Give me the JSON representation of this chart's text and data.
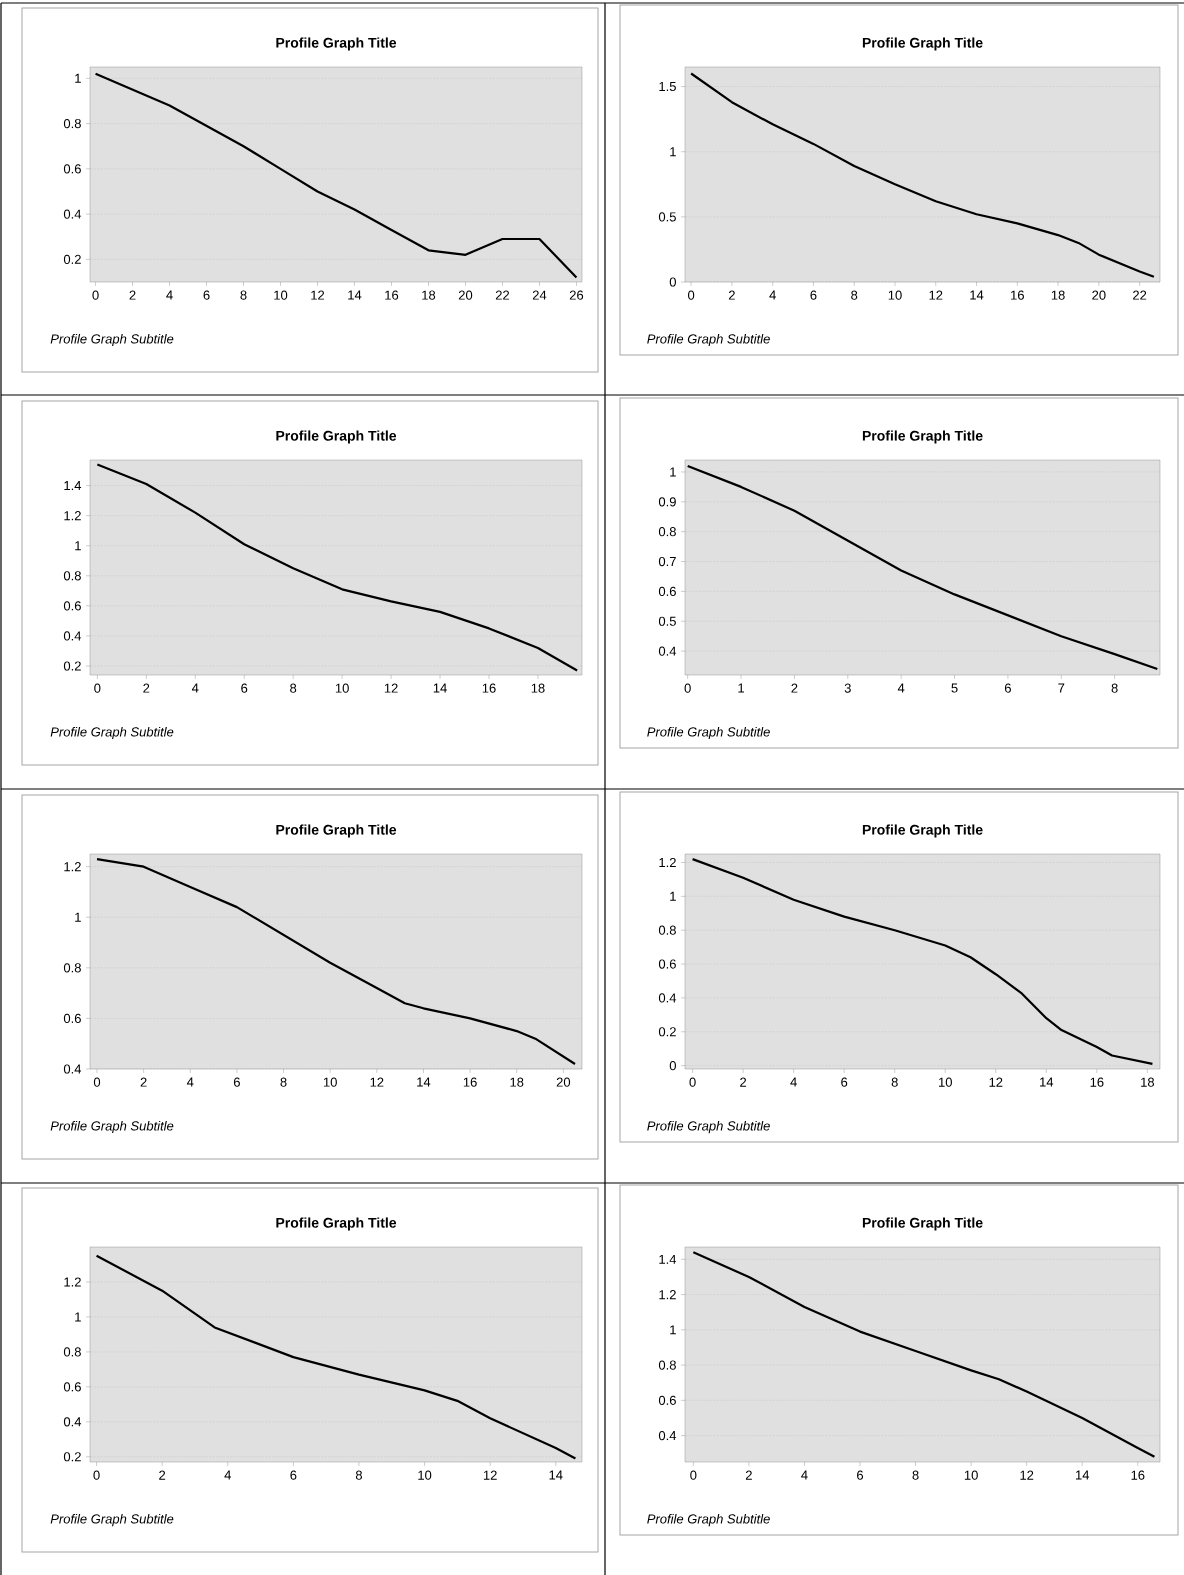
{
  "chart_data": [
    {
      "type": "line",
      "title": "Profile Graph Title",
      "subtitle": "Profile Graph Subtitle",
      "color": "#000000",
      "grid": "y",
      "xlim": [
        -0.3,
        26.3
      ],
      "ylim": [
        0.1,
        1.05
      ],
      "xticks": [
        0,
        2,
        4,
        6,
        8,
        10,
        12,
        14,
        16,
        18,
        20,
        22,
        24,
        26
      ],
      "yticks": [
        0.2,
        0.4,
        0.6,
        0.8,
        1
      ],
      "x": [
        0,
        2,
        4,
        6,
        8,
        10,
        12,
        14,
        16,
        18,
        19,
        20,
        22,
        24,
        26
      ],
      "values": [
        1.02,
        0.95,
        0.88,
        0.79,
        0.7,
        0.6,
        0.5,
        0.42,
        0.33,
        0.24,
        0.23,
        0.22,
        0.29,
        0.29,
        0.12
      ]
    },
    {
      "type": "line",
      "title": "Profile Graph Title",
      "subtitle": "Profile Graph Subtitle",
      "color": "#000000",
      "grid": "y",
      "xlim": [
        -0.3,
        23
      ],
      "ylim": [
        0,
        1.65
      ],
      "xticks": [
        0,
        2,
        4,
        6,
        8,
        10,
        12,
        14,
        16,
        18,
        20,
        22
      ],
      "yticks": [
        0,
        0.5,
        1,
        1.5
      ],
      "x": [
        0,
        2,
        4,
        6,
        8,
        10,
        12,
        14,
        16,
        18,
        19,
        20,
        22,
        22.7
      ],
      "values": [
        1.6,
        1.38,
        1.21,
        1.06,
        0.89,
        0.75,
        0.62,
        0.52,
        0.45,
        0.36,
        0.3,
        0.21,
        0.08,
        0.04
      ]
    },
    {
      "type": "line",
      "title": "Profile Graph Title",
      "subtitle": "Profile Graph Subtitle",
      "color": "#000000",
      "grid": "y",
      "xlim": [
        -0.3,
        19.8
      ],
      "ylim": [
        0.14,
        1.57
      ],
      "xticks": [
        0,
        2,
        4,
        6,
        8,
        10,
        12,
        14,
        16,
        18
      ],
      "yticks": [
        0.2,
        0.4,
        0.6,
        0.8,
        1,
        1.2,
        1.4
      ],
      "x": [
        0,
        2,
        4,
        6,
        8,
        10,
        12,
        14,
        16,
        18,
        19.6
      ],
      "values": [
        1.54,
        1.41,
        1.22,
        1.01,
        0.85,
        0.71,
        0.63,
        0.56,
        0.45,
        0.32,
        0.17
      ]
    },
    {
      "type": "line",
      "title": "Profile Graph Title",
      "subtitle": "Profile Graph Subtitle",
      "color": "#000000",
      "grid": "y",
      "xlim": [
        -0.05,
        8.85
      ],
      "ylim": [
        0.32,
        1.04
      ],
      "xticks": [
        0,
        1,
        2,
        3,
        4,
        5,
        6,
        7,
        8
      ],
      "yticks": [
        0.4,
        0.5,
        0.6,
        0.7,
        0.8,
        0.9,
        1
      ],
      "x": [
        0,
        1,
        2,
        3,
        4,
        5,
        6,
        7,
        8,
        8.8
      ],
      "values": [
        1.02,
        0.95,
        0.87,
        0.77,
        0.67,
        0.59,
        0.52,
        0.45,
        0.39,
        0.34
      ]
    },
    {
      "type": "line",
      "title": "Profile Graph Title",
      "subtitle": "Profile Graph Subtitle",
      "color": "#000000",
      "grid": "y",
      "xlim": [
        -0.3,
        20.8
      ],
      "ylim": [
        0.4,
        1.25
      ],
      "xticks": [
        0,
        2,
        4,
        6,
        8,
        10,
        12,
        14,
        16,
        18,
        20
      ],
      "yticks": [
        0.4,
        0.6,
        0.8,
        1,
        1.2
      ],
      "x": [
        0,
        2,
        4,
        6,
        8,
        10,
        12,
        13.2,
        14,
        16,
        18,
        18.8,
        20.5
      ],
      "values": [
        1.23,
        1.2,
        1.12,
        1.04,
        0.93,
        0.82,
        0.72,
        0.66,
        0.64,
        0.6,
        0.55,
        0.52,
        0.42
      ]
    },
    {
      "type": "line",
      "title": "Profile Graph Title",
      "subtitle": "Profile Graph Subtitle",
      "color": "#000000",
      "grid": "y",
      "xlim": [
        -0.3,
        18.5
      ],
      "ylim": [
        -0.02,
        1.25
      ],
      "xticks": [
        0,
        2,
        4,
        6,
        8,
        10,
        12,
        14,
        16,
        18
      ],
      "yticks": [
        0,
        0.2,
        0.4,
        0.6,
        0.8,
        1,
        1.2
      ],
      "x": [
        0,
        2,
        4,
        6,
        8,
        10,
        11,
        12,
        13,
        14,
        14.6,
        16,
        16.6,
        18.2
      ],
      "values": [
        1.22,
        1.11,
        0.98,
        0.88,
        0.8,
        0.71,
        0.64,
        0.54,
        0.43,
        0.28,
        0.21,
        0.11,
        0.06,
        0.01
      ]
    },
    {
      "type": "line",
      "title": "Profile Graph Title",
      "subtitle": "Profile Graph Subtitle",
      "color": "#000000",
      "grid": "y",
      "xlim": [
        -0.2,
        14.8
      ],
      "ylim": [
        0.17,
        1.4
      ],
      "xticks": [
        0,
        2,
        4,
        6,
        8,
        10,
        12,
        14
      ],
      "yticks": [
        0.2,
        0.4,
        0.6,
        0.8,
        1,
        1.2
      ],
      "x": [
        0,
        2,
        3.6,
        6,
        8,
        10,
        11,
        12,
        14,
        14.6
      ],
      "values": [
        1.35,
        1.15,
        0.94,
        0.77,
        0.67,
        0.58,
        0.52,
        0.42,
        0.25,
        0.19
      ]
    },
    {
      "type": "line",
      "title": "Profile Graph Title",
      "subtitle": "Profile Graph Subtitle",
      "color": "#000000",
      "grid": "y",
      "xlim": [
        -0.3,
        16.8
      ],
      "ylim": [
        0.25,
        1.47
      ],
      "xticks": [
        0,
        2,
        4,
        6,
        8,
        10,
        12,
        14,
        16
      ],
      "yticks": [
        0.4,
        0.6,
        0.8,
        1,
        1.2,
        1.4
      ],
      "x": [
        0,
        2,
        4,
        6,
        8,
        10,
        11,
        12,
        14,
        16,
        16.6
      ],
      "values": [
        1.44,
        1.3,
        1.13,
        0.99,
        0.88,
        0.77,
        0.72,
        0.65,
        0.5,
        0.33,
        0.28
      ]
    }
  ]
}
